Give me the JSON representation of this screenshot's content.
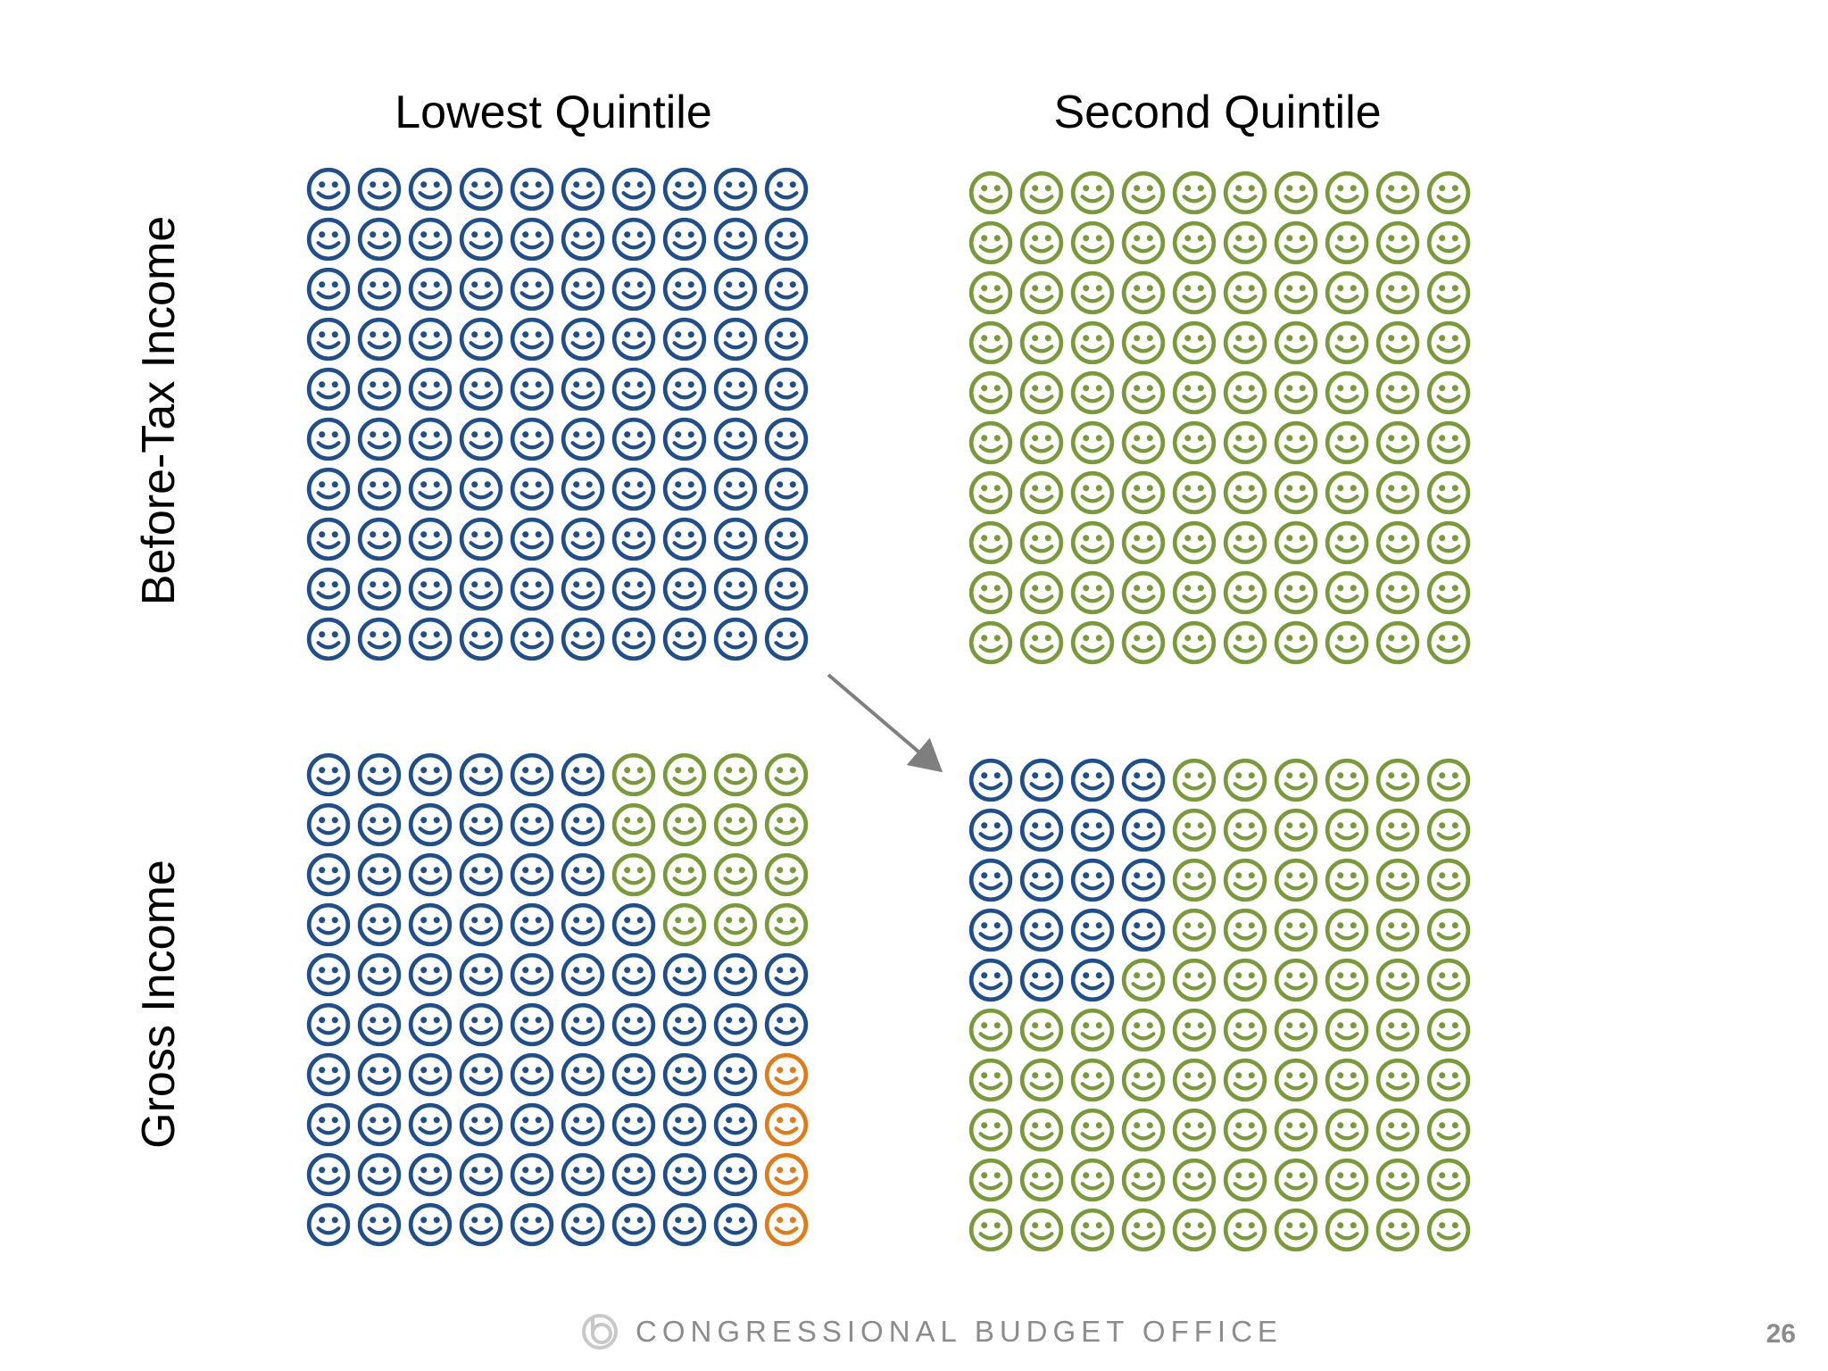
{
  "columns": [
    {
      "title": "Lowest Quintile"
    },
    {
      "title": "Second Quintile"
    }
  ],
  "rows": [
    {
      "label": "Before-Tax Income"
    },
    {
      "label": "Gross Income"
    }
  ],
  "colors": {
    "blue": "#1f4e8c",
    "green": "#7a9a3a",
    "orange": "#e07b1a",
    "arrow": "#7f7f7f",
    "footer_text": "#8c8c8c"
  },
  "panels": [
    {
      "id": "before-tax-lowest",
      "counts": {
        "blue": 100,
        "green": 0,
        "orange": 0
      },
      "cells": [
        "bbbbbbbbbb",
        "bbbbbbbbbb",
        "bbbbbbbbbb",
        "bbbbbbbbbb",
        "bbbbbbbbbb",
        "bbbbbbbbbb",
        "bbbbbbbbbb",
        "bbbbbbbbbb",
        "bbbbbbbbbb",
        "bbbbbbbbbb"
      ]
    },
    {
      "id": "before-tax-second",
      "counts": {
        "blue": 0,
        "green": 100,
        "orange": 0
      },
      "cells": [
        "gggggggggg",
        "gggggggggg",
        "gggggggggg",
        "gggggggggg",
        "gggggggggg",
        "gggggggggg",
        "gggggggggg",
        "gggggggggg",
        "gggggggggg",
        "gggggggggg"
      ]
    },
    {
      "id": "gross-lowest",
      "counts": {
        "blue": 81,
        "green": 15,
        "orange": 4
      },
      "cells": [
        "bbbbbbgggg",
        "bbbbbbgggg",
        "bbbbbbgggg",
        "bbbbbbbggg",
        "bbbbbbbbbb",
        "bbbbbbbbbb",
        "bbbbbbbbbo",
        "bbbbbbbbbo",
        "bbbbbbbbbo",
        "bbbbbbbbbo"
      ]
    },
    {
      "id": "gross-second",
      "counts": {
        "blue": 19,
        "green": 81,
        "orange": 0
      },
      "cells": [
        "bbbbgggggg",
        "bbbbgggggg",
        "bbbbgggggg",
        "bbbbgggggg",
        "bbbggggggg",
        "gggggggggg",
        "gggggggggg",
        "gggggggggg",
        "gggggggggg",
        "gggggggggg"
      ]
    }
  ],
  "footer": {
    "organization": "CONGRESSIONAL BUDGET OFFICE",
    "logo_icon": "cbo-logo-icon",
    "page_number": "26"
  }
}
